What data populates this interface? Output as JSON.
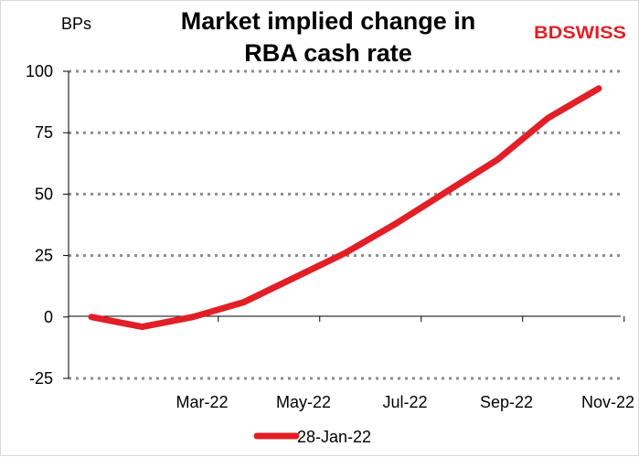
{
  "chart_data": {
    "type": "line",
    "title": "Market implied change in RBA cash rate",
    "title_lines": [
      "Market implied change in",
      "RBA cash rate"
    ],
    "ylabel": "BPs",
    "ylim": [
      -25,
      100
    ],
    "yticks": [
      -25,
      0,
      25,
      50,
      75,
      100
    ],
    "x_tick_labels": [
      "Mar-22",
      "May-22",
      "Jul-22",
      "Sep-22",
      "Nov-22"
    ],
    "x_tick_positions": [
      "2022-03",
      "2022-05",
      "2022-07",
      "2022-09",
      "2022-11"
    ],
    "x": [
      "2022-01",
      "2022-02",
      "2022-03",
      "2022-04",
      "2022-05",
      "2022-06",
      "2022-07",
      "2022-08",
      "2022-09",
      "2022-10",
      "2022-11"
    ],
    "grid": "horizontal-dotted",
    "legend_position": "bottom",
    "series": [
      {
        "name": "28-Jan-22",
        "color": "#e21f26",
        "values": [
          0,
          -4,
          0,
          6,
          16,
          26,
          38,
          51,
          64,
          81,
          93
        ]
      }
    ]
  },
  "branding": {
    "logo_text": "BDSWISS",
    "logo_color": "#e21f26"
  }
}
